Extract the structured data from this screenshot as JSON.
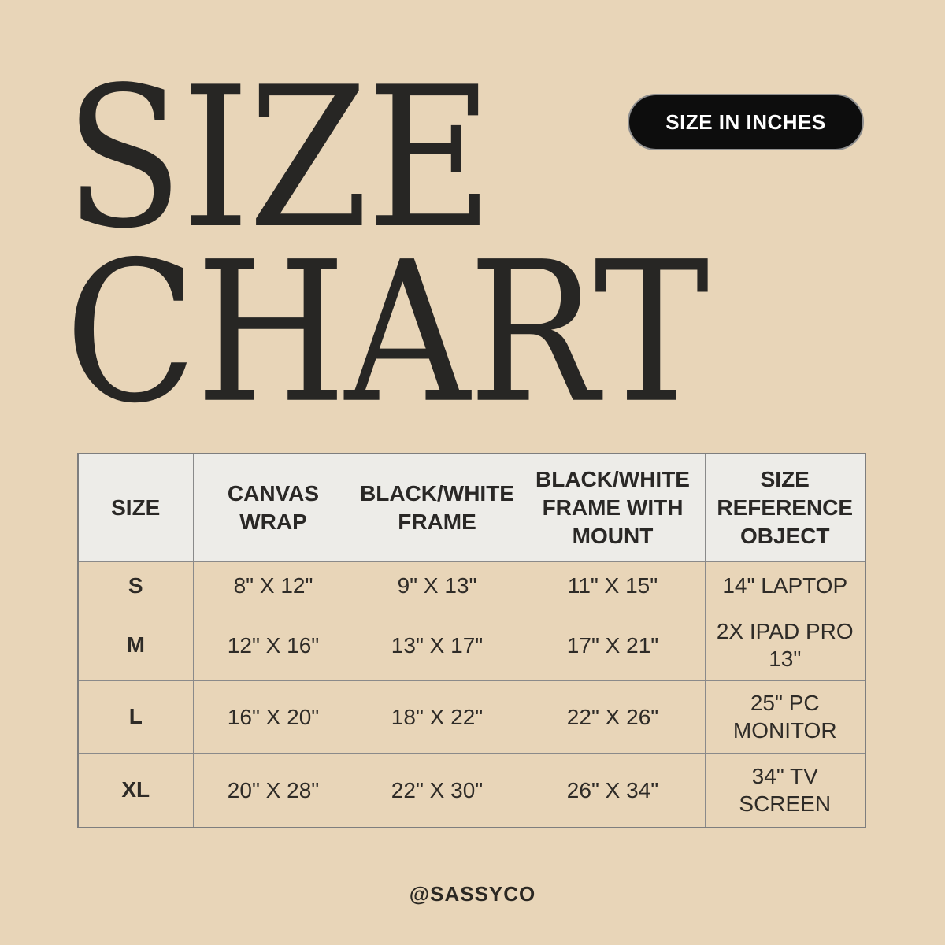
{
  "header": {
    "title_line1": "SIZE",
    "title_line2": "CHART",
    "badge_label": "SIZE IN INCHES"
  },
  "size_table": {
    "headers": [
      "SIZE",
      "CANVAS\nWRAP",
      "BLACK/WHITE\nFRAME",
      "BLACK/WHITE\nFRAME WITH\nMOUNT",
      "SIZE\nREFERENCE\nOBJECT"
    ],
    "rows": [
      {
        "size": "S",
        "canvas_wrap": "8\" X 12\"",
        "bw_frame": "9\" X 13\"",
        "bw_frame_mount": "11\" X 15\"",
        "reference": "14\" LAPTOP"
      },
      {
        "size": "M",
        "canvas_wrap": "12\" X 16\"",
        "bw_frame": "13\" X 17\"",
        "bw_frame_mount": "17\" X 21\"",
        "reference": "2X IPAD PRO\n13\""
      },
      {
        "size": "L",
        "canvas_wrap": "16\" X 20\"",
        "bw_frame": "18\" X 22\"",
        "bw_frame_mount": "22\" X 26\"",
        "reference": "25\" PC\nMONITOR"
      },
      {
        "size": "XL",
        "canvas_wrap": "20\" X 28\"",
        "bw_frame": "22\" X 30\"",
        "bw_frame_mount": "26\" X 34\"",
        "reference": "34\" TV\nSCREEN"
      }
    ]
  },
  "footer": {
    "handle": "@SASSYCO"
  },
  "colors": {
    "background": "#e8d5b8",
    "title_text": "#272624",
    "badge_bg": "#0d0d0d",
    "badge_text": "#ffffff",
    "badge_outline": "#8f8f8f",
    "table_header_bg": "#edece8",
    "table_border": "#8a8a8a",
    "table_text": "#2e2b27"
  },
  "chart_data": {
    "type": "table",
    "title": "SIZE CHART",
    "unit_note": "SIZE IN INCHES",
    "columns": [
      "SIZE",
      "CANVAS WRAP",
      "BLACK/WHITE FRAME",
      "BLACK/WHITE FRAME WITH MOUNT",
      "SIZE REFERENCE OBJECT"
    ],
    "rows": [
      [
        "S",
        "8\" X 12\"",
        "9\" X 13\"",
        "11\" X 15\"",
        "14\" LAPTOP"
      ],
      [
        "M",
        "12\" X 16\"",
        "13\" X 17\"",
        "17\" X 21\"",
        "2X IPAD PRO 13\""
      ],
      [
        "L",
        "16\" X 20\"",
        "18\" X 22\"",
        "22\" X 26\"",
        "25\" PC MONITOR"
      ],
      [
        "XL",
        "20\" X 28\"",
        "22\" X 30\"",
        "26\" X 34\"",
        "34\" TV SCREEN"
      ]
    ],
    "attribution": "@SASSYCO"
  }
}
